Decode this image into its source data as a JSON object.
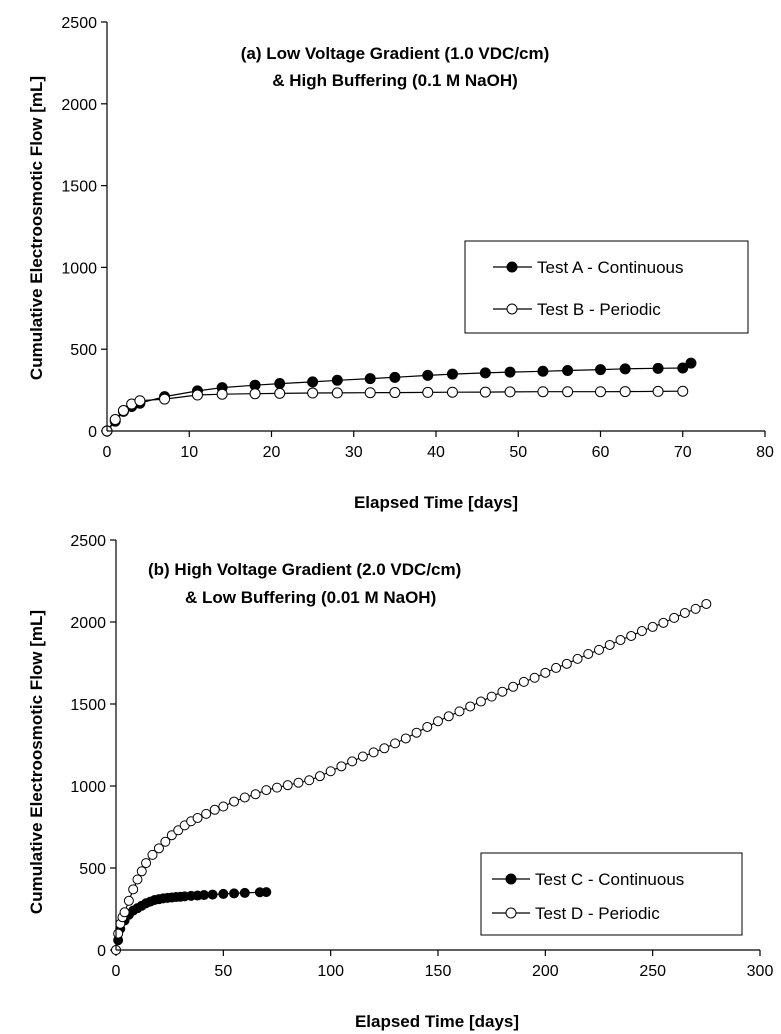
{
  "chart_data": [
    {
      "type": "line",
      "xlabel": "Elapsed Time [days]",
      "ylabel": "Cumulative Electroosmotic Flow [mL]",
      "xlim": [
        0,
        80
      ],
      "ylim": [
        0,
        2500
      ],
      "xticks": [
        "0",
        "10",
        "20",
        "30",
        "40",
        "50",
        "60",
        "70",
        "80"
      ],
      "yticks": [
        "0",
        "500",
        "1000",
        "1500",
        "2000",
        "2500"
      ],
      "annotation": [
        "(a) Low Voltage Gradient (1.0 VDC/cm)",
        "& High Buffering (0.1 M NaOH)"
      ],
      "legend_position": "right",
      "grid": false,
      "series": [
        {
          "name": "Test A - Continuous",
          "marker": "filled-circle",
          "x": [
            0,
            1,
            2,
            3,
            4,
            7,
            11,
            14,
            18,
            21,
            25,
            28,
            32,
            35,
            39,
            42,
            46,
            49,
            53,
            56,
            60,
            63,
            67,
            70,
            71
          ],
          "y": [
            0,
            60,
            120,
            150,
            170,
            210,
            245,
            265,
            280,
            290,
            300,
            310,
            320,
            328,
            340,
            348,
            355,
            360,
            365,
            370,
            375,
            380,
            383,
            385,
            415
          ]
        },
        {
          "name": "Test B - Periodic",
          "marker": "open-circle",
          "x": [
            0,
            1,
            2,
            3,
            4,
            7,
            11,
            14,
            18,
            21,
            25,
            28,
            32,
            35,
            39,
            42,
            46,
            49,
            53,
            56,
            60,
            63,
            67,
            70
          ],
          "y": [
            0,
            70,
            125,
            165,
            185,
            195,
            220,
            225,
            228,
            230,
            232,
            233,
            234,
            235,
            236,
            237,
            238,
            239,
            240,
            240,
            240,
            241,
            242,
            243
          ]
        }
      ]
    },
    {
      "type": "line",
      "xlabel": "Elapsed Time [days]",
      "ylabel": "Cumulative Electroosmotic Flow [mL]",
      "xlim": [
        0,
        300
      ],
      "ylim": [
        0,
        2500
      ],
      "xticks": [
        "0",
        "50",
        "100",
        "150",
        "200",
        "250",
        "300"
      ],
      "yticks": [
        "0",
        "500",
        "1000",
        "1500",
        "2000",
        "2500"
      ],
      "annotation": [
        "(b) High Voltage Gradient (2.0 VDC/cm)",
        "& Low Buffering (0.01 M NaOH)"
      ],
      "legend_position": "bottom-right",
      "grid": false,
      "series": [
        {
          "name": "Test C - Continuous",
          "marker": "filled-circle",
          "x": [
            0,
            1,
            2,
            4,
            6,
            8,
            10,
            12,
            14,
            16,
            18,
            20,
            22,
            24,
            26,
            28,
            30,
            32,
            35,
            38,
            41,
            45,
            50,
            55,
            60,
            67,
            70
          ],
          "y": [
            0,
            60,
            130,
            180,
            215,
            240,
            255,
            270,
            285,
            295,
            305,
            310,
            315,
            318,
            320,
            323,
            325,
            327,
            330,
            332,
            335,
            338,
            342,
            345,
            348,
            352,
            353
          ]
        },
        {
          "name": "Test D - Periodic",
          "marker": "open-circle",
          "x": [
            0,
            1,
            2,
            3,
            4,
            6,
            8,
            10,
            12,
            14,
            17,
            20,
            23,
            26,
            29,
            32,
            35,
            38,
            42,
            46,
            50,
            55,
            60,
            65,
            70,
            75,
            80,
            85,
            90,
            95,
            100,
            105,
            110,
            115,
            120,
            125,
            130,
            135,
            140,
            145,
            150,
            155,
            160,
            165,
            170,
            175,
            180,
            185,
            190,
            195,
            200,
            205,
            210,
            215,
            220,
            225,
            230,
            235,
            240,
            245,
            250,
            255,
            260,
            265,
            270,
            275
          ],
          "y": [
            0,
            100,
            160,
            200,
            230,
            300,
            370,
            430,
            480,
            530,
            580,
            620,
            660,
            700,
            730,
            760,
            785,
            805,
            830,
            855,
            875,
            905,
            930,
            950,
            975,
            990,
            1005,
            1020,
            1035,
            1060,
            1090,
            1120,
            1150,
            1180,
            1205,
            1230,
            1260,
            1290,
            1325,
            1360,
            1395,
            1425,
            1455,
            1485,
            1515,
            1545,
            1575,
            1605,
            1635,
            1660,
            1690,
            1720,
            1745,
            1775,
            1805,
            1830,
            1860,
            1890,
            1915,
            1945,
            1970,
            1995,
            2025,
            2055,
            2080,
            2110
          ]
        }
      ]
    }
  ]
}
